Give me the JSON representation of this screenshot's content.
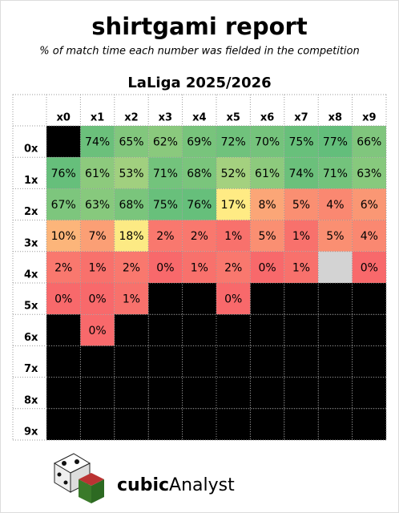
{
  "chart_data": {
    "type": "heatmap",
    "title": "shirtgami report",
    "subtitle": "% of match time each number was fielded in the competition",
    "heading": "LaLiga 2025/2026",
    "x_categories": [
      "x0",
      "x1",
      "x2",
      "x3",
      "x4",
      "x5",
      "x6",
      "x7",
      "x8",
      "x9"
    ],
    "y_categories": [
      "0x",
      "1x",
      "2x",
      "3x",
      "4x",
      "5x",
      "6x",
      "7x",
      "8x",
      "9x"
    ],
    "values": [
      [
        null,
        74,
        65,
        62,
        69,
        72,
        70,
        75,
        77,
        66
      ],
      [
        76,
        61,
        53,
        71,
        68,
        52,
        61,
        74,
        71,
        63
      ],
      [
        67,
        63,
        68,
        75,
        76,
        17,
        8,
        5,
        4,
        6
      ],
      [
        10,
        7,
        18,
        2,
        2,
        1,
        5,
        1,
        5,
        4
      ],
      [
        2,
        1,
        2,
        0,
        1,
        2,
        0,
        1,
        null,
        0
      ],
      [
        0,
        0,
        1,
        null,
        null,
        0,
        null,
        null,
        null,
        null
      ],
      [
        null,
        0,
        null,
        null,
        null,
        null,
        null,
        null,
        null,
        null
      ],
      [
        null,
        null,
        null,
        null,
        null,
        null,
        null,
        null,
        null,
        null
      ],
      [
        null,
        null,
        null,
        null,
        null,
        null,
        null,
        null,
        null,
        null
      ],
      [
        null,
        null,
        null,
        null,
        null,
        null,
        null,
        null,
        null,
        null
      ]
    ],
    "value_labels": [
      [
        null,
        "74%",
        "65%",
        "62%",
        "69%",
        "72%",
        "70%",
        "75%",
        "77%",
        "66%"
      ],
      [
        "76%",
        "61%",
        "53%",
        "71%",
        "68%",
        "52%",
        "61%",
        "74%",
        "71%",
        "63%"
      ],
      [
        "67%",
        "63%",
        "68%",
        "75%",
        "76%",
        "17%",
        "8%",
        "5%",
        "4%",
        "6%"
      ],
      [
        "10%",
        "7%",
        "18%",
        "2%",
        "2%",
        "1%",
        "5%",
        "1%",
        "5%",
        "4%"
      ],
      [
        "2%",
        "1%",
        "2%",
        "0%",
        "1%",
        "2%",
        "0%",
        "1%",
        null,
        "0%"
      ],
      [
        "0%",
        "0%",
        "1%",
        null,
        null,
        "0%",
        null,
        null,
        null,
        null
      ],
      [
        null,
        "0%",
        null,
        null,
        null,
        null,
        null,
        null,
        null,
        null
      ],
      [
        null,
        null,
        null,
        null,
        null,
        null,
        null,
        null,
        null,
        null
      ],
      [
        null,
        null,
        null,
        null,
        null,
        null,
        null,
        null,
        null,
        null
      ],
      [
        null,
        null,
        null,
        null,
        null,
        null,
        null,
        null,
        null,
        null
      ]
    ],
    "color_stops": [
      {
        "value": 0,
        "color": "#f8696b"
      },
      {
        "value": 17,
        "color": "#ffeb84"
      },
      {
        "value": 77,
        "color": "#63be7b"
      }
    ],
    "missing_color": "#000000",
    "blank_cells": [
      {
        "row": "4x",
        "col": "x8"
      }
    ],
    "blank_color": "#d3d3d3",
    "logo": {
      "bold": "cubic",
      "light": "Analyst"
    }
  }
}
